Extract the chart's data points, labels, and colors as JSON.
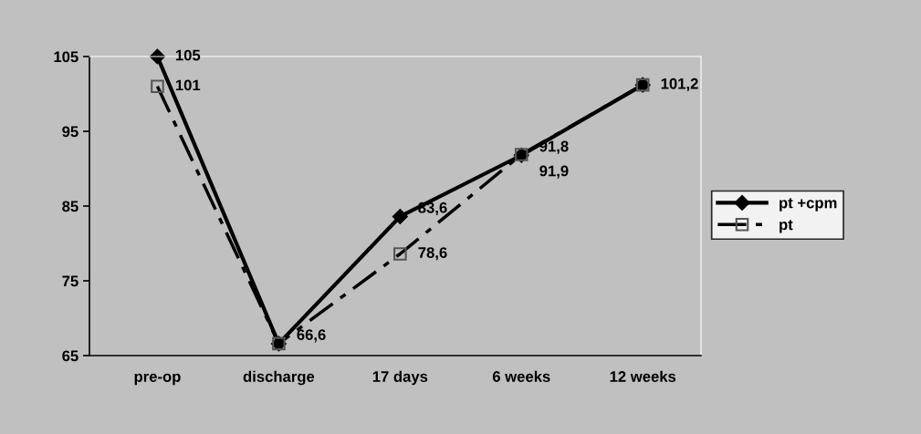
{
  "chart_data": {
    "type": "line",
    "categories": [
      "pre-op",
      "discharge",
      "17 days",
      "6 weeks",
      "12 weeks"
    ],
    "series": [
      {
        "name": "pt +cpm",
        "color": "#000000",
        "marker": "diamond",
        "line_style": "solid",
        "values": [
          105,
          66.6,
          83.6,
          91.8,
          101.2
        ],
        "value_labels": [
          "105",
          "66,6",
          "83,6",
          "91,8",
          "101,2"
        ]
      },
      {
        "name": "pt",
        "color": "#000000",
        "marker": "square",
        "line_style": "dashed",
        "values": [
          101,
          66.6,
          78.6,
          91.9,
          101.2
        ],
        "value_labels": [
          "101",
          null,
          "78,6",
          "91,9",
          null
        ]
      }
    ],
    "ylim": [
      65,
      105
    ],
    "yticks": [
      65,
      75,
      85,
      95,
      105
    ],
    "grid": false,
    "legend": "right"
  }
}
